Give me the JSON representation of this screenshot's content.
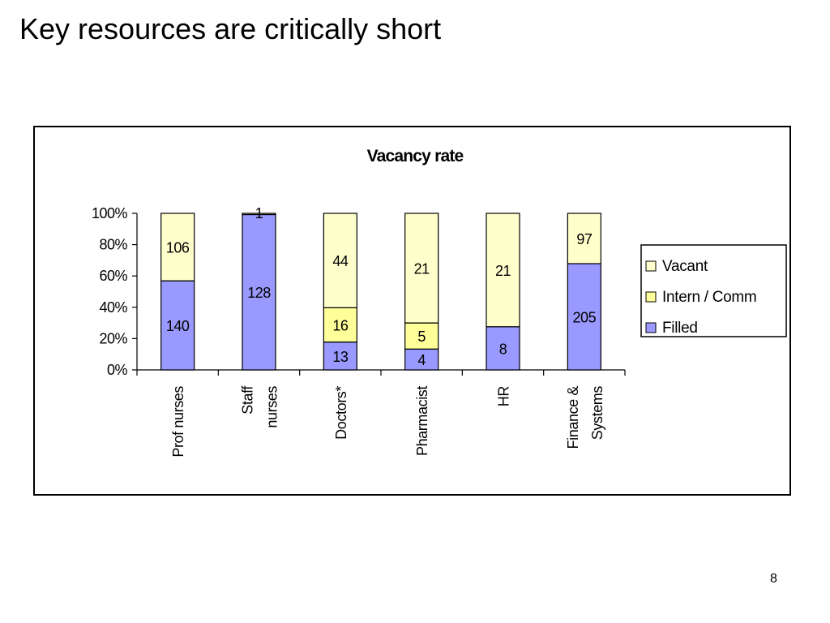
{
  "slide": {
    "title": "Key resources are critically short",
    "page_number": "8"
  },
  "chart_data": {
    "type": "bar",
    "stacked": "percent",
    "title": "Vacancy rate",
    "categories": [
      "Prof nurses",
      "Staff nurses",
      "Doctors*",
      "Pharmacist",
      "HR",
      "Finance & Systems"
    ],
    "category_lines": [
      [
        "Prof nurses"
      ],
      [
        "Staff",
        "nurses"
      ],
      [
        "Doctors*"
      ],
      [
        "Pharmacist"
      ],
      [
        "HR"
      ],
      [
        "Finance &",
        "Systems"
      ]
    ],
    "series": [
      {
        "name": "Filled",
        "values": [
          140,
          128,
          13,
          4,
          8,
          205
        ],
        "color": "#9999FF"
      },
      {
        "name": "Intern / Comm",
        "values": [
          null,
          null,
          16,
          5,
          null,
          null
        ],
        "color": "#FFFF99"
      },
      {
        "name": "Vacant",
        "values": [
          106,
          1,
          44,
          21,
          21,
          97
        ],
        "color": "#FFFFCC"
      }
    ],
    "yticks": [
      "0%",
      "20%",
      "40%",
      "60%",
      "80%",
      "100%"
    ],
    "ylim": [
      0,
      100
    ],
    "xlabel": "",
    "ylabel": "",
    "grid": false,
    "legend": {
      "placement": "right",
      "order": [
        "Vacant",
        "Intern / Comm",
        "Filled"
      ]
    }
  }
}
